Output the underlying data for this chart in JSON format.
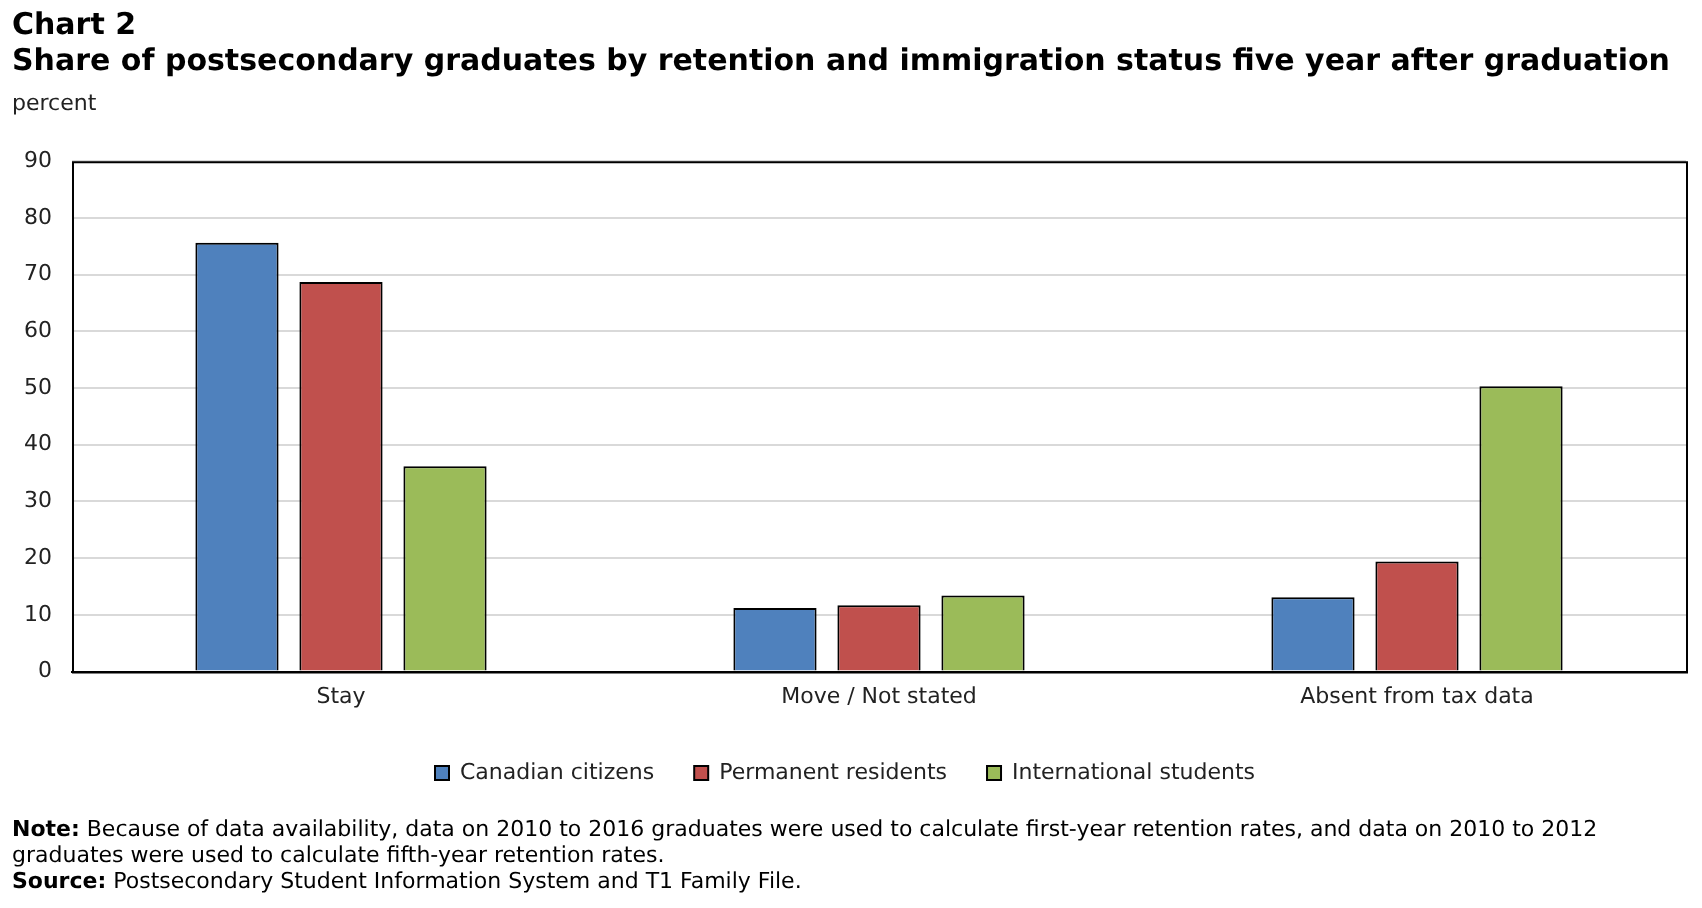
{
  "chart_data": {
    "type": "bar",
    "title": "Chart 2",
    "subtitle": "Share of postsecondary graduates by retention and immigration status five year after graduation",
    "ylabel": "percent",
    "categories": [
      "Stay",
      "Move / Not stated",
      "Absent from tax data"
    ],
    "series": [
      {
        "name": "Canadian citizens",
        "color": "#4f81bd",
        "values": [
          75.6,
          11.2,
          13.1
        ]
      },
      {
        "name": "Permanent residents",
        "color": "#c0504d",
        "values": [
          68.7,
          11.7,
          19.4
        ]
      },
      {
        "name": "International students",
        "color": "#9bbb59",
        "values": [
          36.2,
          13.4,
          50.3
        ]
      }
    ],
    "ylim": [
      0,
      90
    ],
    "yticks": [
      0,
      10,
      20,
      30,
      40,
      50,
      60,
      70,
      80,
      90
    ],
    "grid": "y",
    "legend": "bottom",
    "annotations": [
      "Note: Because of data availability, data on 2010 to 2016 graduates were used to calculate first-year retention rates, and data on 2010 to 2012 graduates were used to calculate fifth-year retention rates.",
      "Source: Postsecondary Student Information System and T1 Family File."
    ]
  }
}
